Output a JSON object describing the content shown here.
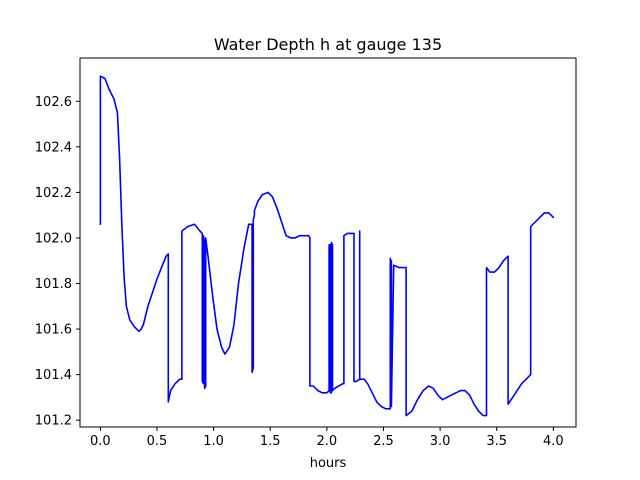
{
  "chart_data": {
    "type": "line",
    "title": "Water Depth h at gauge 135",
    "xlabel": "hours",
    "ylabel": "",
    "xlim": [
      -0.18,
      4.2
    ],
    "ylim": [
      101.17,
      102.79
    ],
    "x_ticks": [
      0.0,
      0.5,
      1.0,
      1.5,
      2.0,
      2.5,
      3.0,
      3.5,
      4.0
    ],
    "x_tick_labels": [
      "0.0",
      "0.5",
      "1.0",
      "1.5",
      "2.0",
      "2.5",
      "3.0",
      "3.5",
      "4.0"
    ],
    "y_ticks": [
      101.2,
      101.4,
      101.6,
      101.8,
      102.0,
      102.2,
      102.4,
      102.6
    ],
    "y_tick_labels": [
      "101.2",
      "101.4",
      "101.6",
      "101.8",
      "102.0",
      "102.2",
      "102.4",
      "102.6"
    ],
    "grid": false,
    "series": [
      {
        "color": "#0000ff",
        "x": [
          0.0,
          0.0,
          0.04,
          0.08,
          0.12,
          0.15,
          0.17,
          0.19,
          0.21,
          0.23,
          0.26,
          0.3,
          0.34,
          0.36,
          0.38,
          0.42,
          0.46,
          0.5,
          0.54,
          0.58,
          0.6,
          0.6,
          0.62,
          0.66,
          0.7,
          0.72,
          0.72,
          0.77,
          0.83,
          0.88,
          0.9,
          0.9,
          0.91,
          0.91,
          0.92,
          0.92,
          0.93,
          0.93,
          0.95,
          0.99,
          1.03,
          1.07,
          1.1,
          1.14,
          1.18,
          1.22,
          1.27,
          1.31,
          1.34,
          1.34,
          1.35,
          1.35,
          1.36,
          1.36,
          1.39,
          1.43,
          1.48,
          1.52,
          1.56,
          1.6,
          1.64,
          1.68,
          1.72,
          1.76,
          1.8,
          1.84,
          1.85,
          1.85,
          1.88,
          1.92,
          1.96,
          2.0,
          2.02,
          2.02,
          2.03,
          2.03,
          2.04,
          2.04,
          2.05,
          2.05,
          2.07,
          2.14,
          2.15,
          2.15,
          2.18,
          2.23,
          2.24,
          2.24,
          2.26,
          2.29,
          2.29,
          2.29,
          2.3,
          2.33,
          2.36,
          2.4,
          2.44,
          2.48,
          2.52,
          2.56,
          2.56,
          2.56,
          2.57,
          2.57,
          2.59,
          2.64,
          2.69,
          2.7,
          2.7,
          2.75,
          2.8,
          2.85,
          2.9,
          2.94,
          2.98,
          3.02,
          3.06,
          3.1,
          3.14,
          3.18,
          3.22,
          3.26,
          3.3,
          3.34,
          3.38,
          3.41,
          3.41,
          3.44,
          3.48,
          3.52,
          3.56,
          3.6,
          3.6,
          3.64,
          3.68,
          3.72,
          3.76,
          3.8,
          3.8,
          3.84,
          3.88,
          3.92,
          3.96,
          4.0
        ],
        "y": [
          102.06,
          102.71,
          102.7,
          102.65,
          102.61,
          102.55,
          102.35,
          102.05,
          101.82,
          101.7,
          101.64,
          101.61,
          101.59,
          101.6,
          101.62,
          101.7,
          101.76,
          101.82,
          101.87,
          101.92,
          101.93,
          101.28,
          101.33,
          101.36,
          101.38,
          101.38,
          102.03,
          102.05,
          102.06,
          102.03,
          102.02,
          101.37,
          101.36,
          102.01,
          101.98,
          101.34,
          101.35,
          102.0,
          101.92,
          101.75,
          101.6,
          101.52,
          101.49,
          101.52,
          101.62,
          101.8,
          101.96,
          102.06,
          102.06,
          101.41,
          101.43,
          102.08,
          102.1,
          102.12,
          102.16,
          102.19,
          102.2,
          102.18,
          102.13,
          102.07,
          102.01,
          102.0,
          102.0,
          102.01,
          102.01,
          102.01,
          102.0,
          101.35,
          101.35,
          101.33,
          101.32,
          101.32,
          101.33,
          101.97,
          101.97,
          101.32,
          101.32,
          101.98,
          101.97,
          101.33,
          101.34,
          101.36,
          101.36,
          102.01,
          102.02,
          102.02,
          102.02,
          101.37,
          101.37,
          101.38,
          102.03,
          101.38,
          101.38,
          101.38,
          101.36,
          101.32,
          101.28,
          101.26,
          101.25,
          101.25,
          101.91,
          101.9,
          101.9,
          101.26,
          101.88,
          101.87,
          101.87,
          101.87,
          101.22,
          101.24,
          101.29,
          101.33,
          101.35,
          101.34,
          101.31,
          101.29,
          101.3,
          101.31,
          101.32,
          101.33,
          101.33,
          101.31,
          101.27,
          101.24,
          101.22,
          101.22,
          101.87,
          101.85,
          101.85,
          101.87,
          101.9,
          101.92,
          101.27,
          101.3,
          101.33,
          101.36,
          101.38,
          101.4,
          102.05,
          102.07,
          102.09,
          102.11,
          102.11,
          102.09
        ]
      }
    ]
  }
}
